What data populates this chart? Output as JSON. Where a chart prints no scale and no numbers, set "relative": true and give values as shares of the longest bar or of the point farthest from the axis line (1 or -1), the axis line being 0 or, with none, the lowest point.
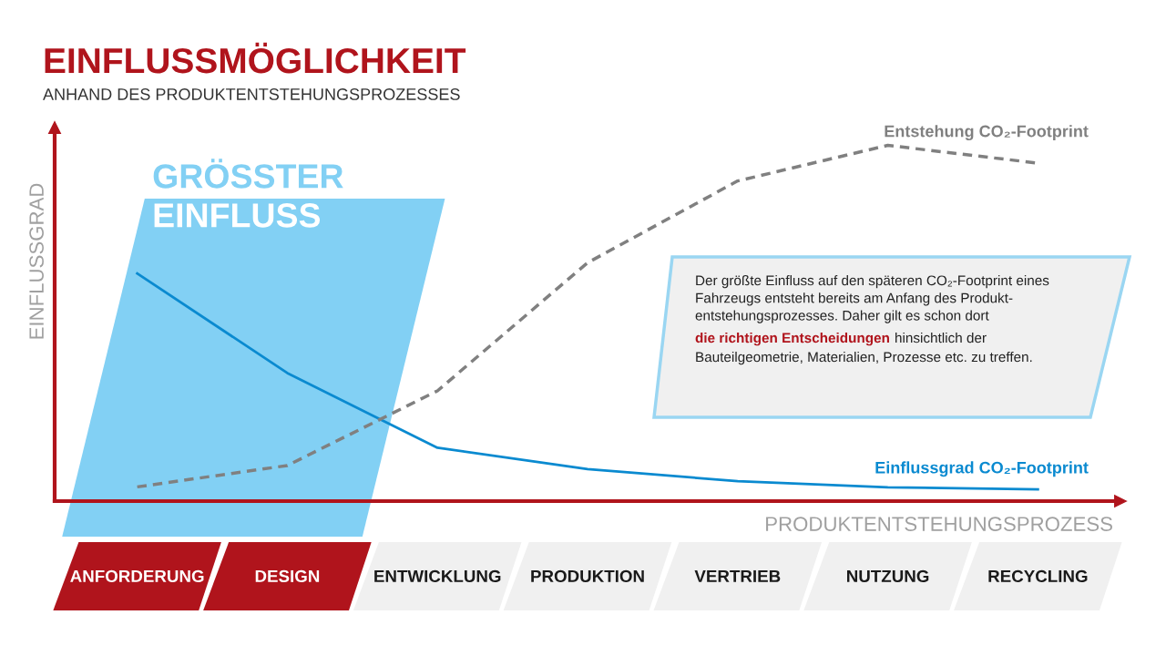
{
  "chart_data": {
    "type": "line",
    "title": "EINFLUSSMÖGLICHKEIT",
    "subtitle": "ANHAND DES PRODUKTENTSTEHUNGSPROZESSES",
    "xlabel": "PRODUKTENTSTEHUNGSPROZESS",
    "ylabel": "EINFLUSSGRAD",
    "relative": true,
    "legend": false,
    "marker": "none",
    "categories": [
      "ANFORDERUNG",
      "DESIGN",
      "ENTWICKLUNG",
      "PRODUKTION",
      "VERTRIEB",
      "NUTZUNG",
      "RECYCLING"
    ],
    "series": [
      {
        "name": "Einflussgrad CO₂-Footprint",
        "color": "#0a8ad0",
        "line_style": "solid",
        "values": [
          0.64,
          0.36,
          0.15,
          0.09,
          0.056,
          0.039,
          0.033
        ]
      },
      {
        "name": "Entstehung CO₂-Footprint",
        "color": "#808080",
        "line_style": "dashed",
        "values": [
          0.04,
          0.1,
          0.31,
          0.67,
          0.9,
          1.0,
          0.95
        ]
      }
    ],
    "annotations": [
      "GRÖSSTER\nEINFLUSS",
      "Der größte Einfluss auf den späteren CO₂-Footprint eines\nFahrzeugs entsteht bereits am Anfang des Produkt-\nentstehungsprozesses. Daher gilt es schon dort",
      "die richtigen Entscheidungen",
      "hinsichtlich der",
      "Bauteilgeometrie, Materialien, Prozesse etc. zu treffen."
    ]
  }
}
